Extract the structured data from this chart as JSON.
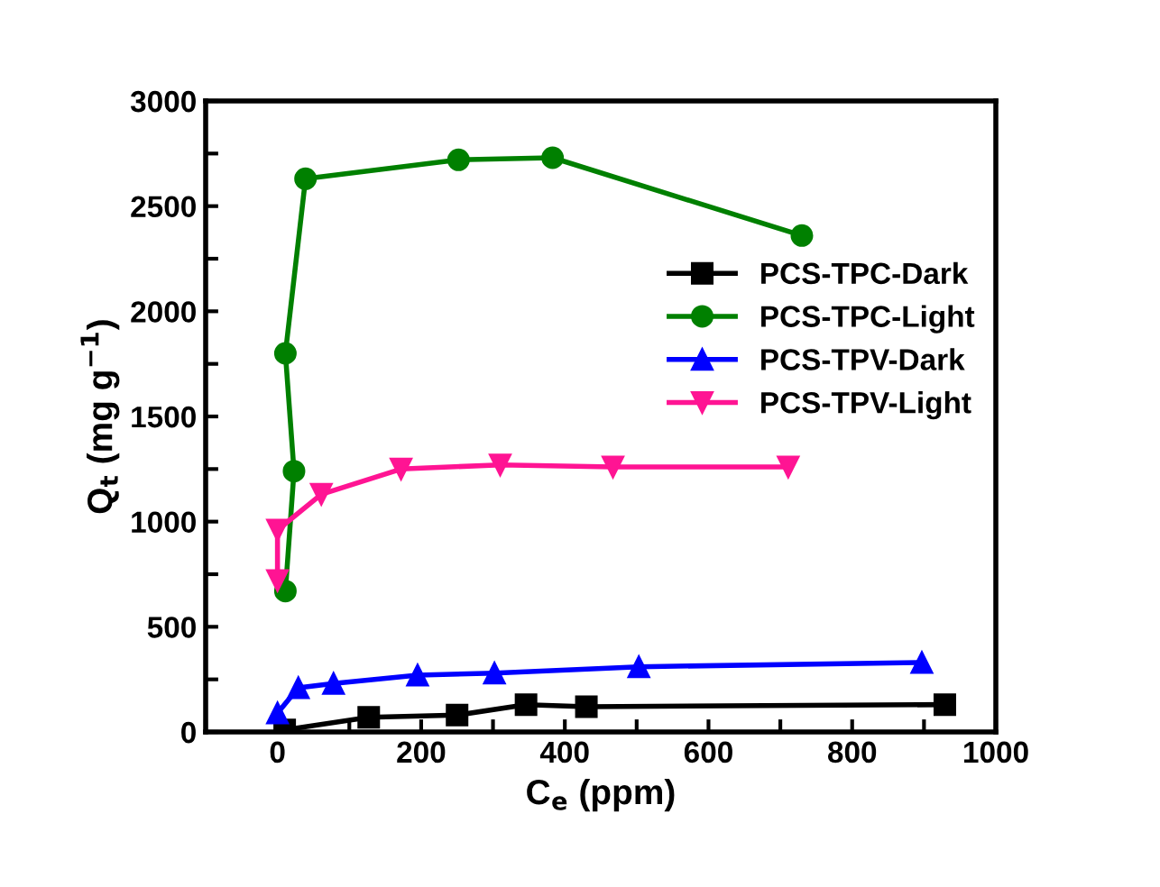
{
  "chart_data": {
    "type": "line",
    "xlabel": "C$_{e}$ (ppm)",
    "ylabel": "Q$_{t}$ (mg g$^{−1}$)",
    "xlim": [
      -100,
      1000
    ],
    "ylim": [
      0,
      3000
    ],
    "xticks": [
      {
        "value": -100,
        "label": null
      },
      0,
      {
        "value": 100,
        "label": null
      },
      200,
      {
        "value": 300,
        "label": null
      },
      400,
      {
        "value": 500,
        "label": null
      },
      600,
      {
        "value": 700,
        "label": null
      },
      800,
      {
        "value": 900,
        "label": null
      },
      1000
    ],
    "yticks": [
      0,
      {
        "value": 250,
        "label": null
      },
      500,
      {
        "value": 750,
        "label": null
      },
      1000,
      {
        "value": 1250,
        "label": null
      },
      1500,
      {
        "value": 1750,
        "label": null
      },
      2000,
      {
        "value": 2250,
        "label": null
      },
      2500,
      {
        "value": 2750,
        "label": null
      },
      3000
    ],
    "grid": false,
    "legend": "right",
    "line_style": "solid",
    "series": [
      {
        "name": "PCS-TPC-Dark",
        "color": "#000000",
        "marker": "square",
        "x": [
          10,
          127,
          250,
          346,
          430,
          929
        ],
        "values": [
          10,
          70,
          80,
          130,
          120,
          130
        ]
      },
      {
        "name": "PCS-TPC-Light",
        "color": "#008000",
        "marker": "circle",
        "x": [
          11,
          23,
          11,
          39,
          252,
          383,
          730
        ],
        "values": [
          670,
          1240,
          1800,
          2630,
          2720,
          2730,
          2360
        ]
      },
      {
        "name": "PCS-TPV-Dark",
        "color": "#0000ff",
        "marker": "triangle",
        "x": [
          0,
          29,
          78,
          195,
          302,
          503,
          897
        ],
        "values": [
          90,
          210,
          230,
          270,
          280,
          310,
          330
        ]
      },
      {
        "name": "PCS-TPV-Light",
        "color": "#ff1493",
        "marker": "triangle_down",
        "x": [
          0,
          0,
          61,
          172,
          310,
          467,
          711
        ],
        "values": [
          720,
          960,
          1130,
          1250,
          1270,
          1260,
          1260
        ]
      }
    ]
  }
}
